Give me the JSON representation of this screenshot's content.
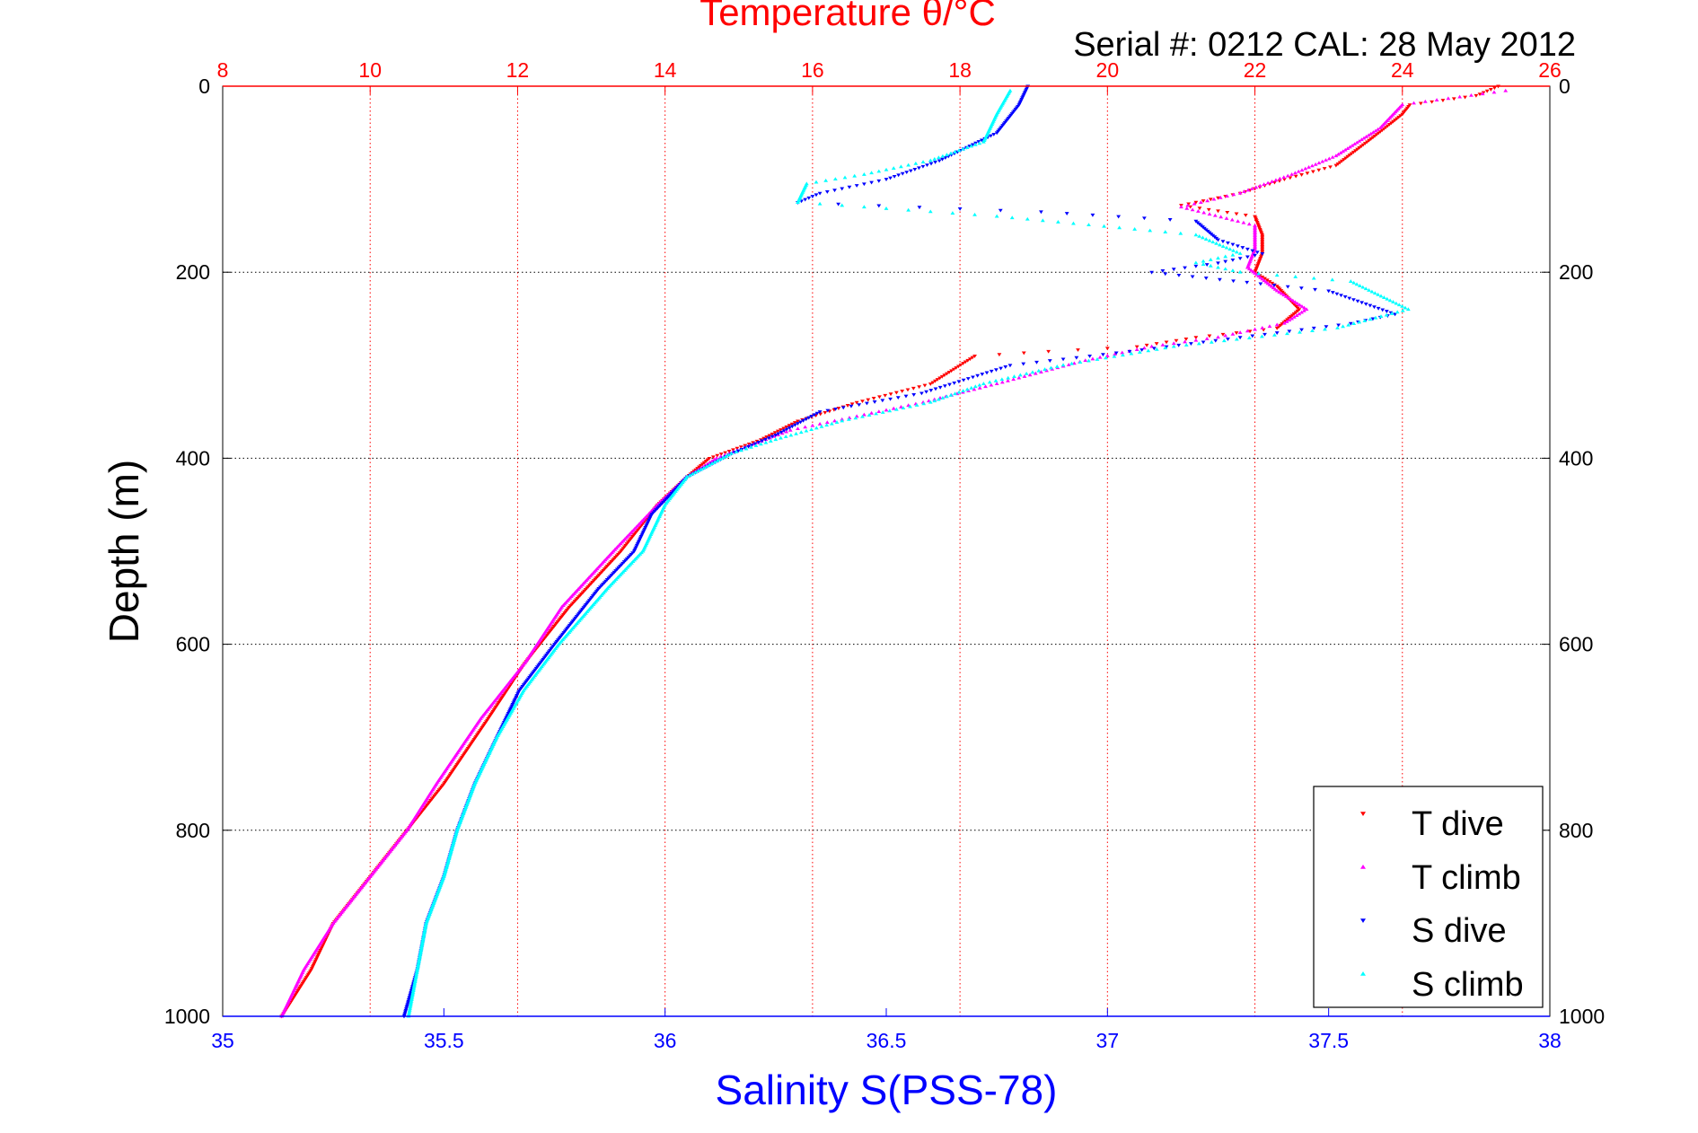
{
  "chart_data": {
    "type": "scatter",
    "title": "Temperature θ/°C",
    "subtitle": "Serial #: 0212  CAL: 28 May 2012",
    "top_axis": {
      "label": "Temperature θ/°C",
      "range": [
        8,
        26
      ],
      "ticks": [
        "8",
        "10",
        "12",
        "14",
        "16",
        "18",
        "20",
        "22",
        "24",
        "26"
      ],
      "color": "#ff0000"
    },
    "bottom_axis": {
      "label": "Salinity S(PSS-78)",
      "range": [
        35,
        38
      ],
      "ticks": [
        "35",
        "35.5",
        "36",
        "36.5",
        "37",
        "37.5",
        "38"
      ],
      "color": "#0000ff"
    },
    "y_axis": {
      "label": "Depth (m)",
      "range": [
        0,
        1000
      ],
      "reversed": true,
      "ticks": [
        "0",
        "200",
        "400",
        "600",
        "800",
        "1000"
      ]
    },
    "grid": true,
    "legend_position": "bottom-right",
    "series": [
      {
        "name": "T dive",
        "axis": "temperature",
        "color": "#ff0000",
        "marker": "down-triangle",
        "points": [
          [
            25.3,
            0
          ],
          [
            25.0,
            10
          ],
          [
            24.1,
            20
          ],
          [
            24.0,
            30
          ],
          [
            23.6,
            55
          ],
          [
            23.1,
            85
          ],
          [
            22.4,
            100
          ],
          [
            21.8,
            115
          ],
          [
            21.0,
            128
          ],
          [
            22.0,
            140
          ],
          [
            22.1,
            160
          ],
          [
            22.1,
            180
          ],
          [
            22.0,
            200
          ],
          [
            22.3,
            215
          ],
          [
            22.6,
            240
          ],
          [
            22.3,
            260
          ],
          [
            21.2,
            270
          ],
          [
            20.4,
            280
          ],
          [
            19.2,
            285
          ],
          [
            18.2,
            290
          ],
          [
            17.6,
            320
          ],
          [
            16.6,
            340
          ],
          [
            15.8,
            360
          ],
          [
            15.3,
            380
          ],
          [
            14.6,
            400
          ],
          [
            14.3,
            420
          ],
          [
            13.9,
            450
          ],
          [
            13.4,
            500
          ],
          [
            12.7,
            560
          ],
          [
            12.1,
            620
          ],
          [
            11.6,
            680
          ],
          [
            11.0,
            750
          ],
          [
            10.5,
            800
          ],
          [
            10.0,
            850
          ],
          [
            9.5,
            900
          ],
          [
            9.2,
            950
          ],
          [
            8.8,
            1000
          ]
        ]
      },
      {
        "name": "T climb",
        "axis": "temperature",
        "color": "#ff00ff",
        "marker": "up-triangle",
        "points": [
          [
            25.4,
            5
          ],
          [
            24.0,
            20
          ],
          [
            23.7,
            45
          ],
          [
            23.1,
            75
          ],
          [
            22.5,
            95
          ],
          [
            21.8,
            115
          ],
          [
            21.0,
            130
          ],
          [
            22.0,
            150
          ],
          [
            22.0,
            175
          ],
          [
            21.9,
            195
          ],
          [
            22.3,
            220
          ],
          [
            22.7,
            240
          ],
          [
            22.4,
            255
          ],
          [
            21.5,
            270
          ],
          [
            20.6,
            280
          ],
          [
            19.7,
            295
          ],
          [
            18.5,
            320
          ],
          [
            17.5,
            340
          ],
          [
            16.6,
            355
          ],
          [
            15.7,
            370
          ],
          [
            15.2,
            385
          ],
          [
            14.7,
            400
          ],
          [
            14.3,
            420
          ],
          [
            13.9,
            450
          ],
          [
            13.3,
            500
          ],
          [
            12.6,
            560
          ],
          [
            12.1,
            620
          ],
          [
            11.5,
            680
          ],
          [
            10.9,
            750
          ],
          [
            10.5,
            800
          ],
          [
            10.0,
            850
          ],
          [
            9.5,
            900
          ],
          [
            9.1,
            950
          ],
          [
            8.8,
            1000
          ]
        ]
      },
      {
        "name": "S dive",
        "axis": "salinity",
        "color": "#0000ff",
        "marker": "down-triangle",
        "points": [
          [
            36.82,
            0
          ],
          [
            36.8,
            20
          ],
          [
            36.75,
            50
          ],
          [
            36.62,
            80
          ],
          [
            36.5,
            100
          ],
          [
            36.35,
            115
          ],
          [
            36.3,
            125
          ],
          [
            36.85,
            135
          ],
          [
            37.2,
            145
          ],
          [
            37.25,
            165
          ],
          [
            37.35,
            180
          ],
          [
            37.25,
            190
          ],
          [
            37.1,
            200
          ],
          [
            37.5,
            220
          ],
          [
            37.65,
            245
          ],
          [
            37.55,
            255
          ],
          [
            37.3,
            270
          ],
          [
            37.05,
            285
          ],
          [
            36.78,
            300
          ],
          [
            36.58,
            330
          ],
          [
            36.35,
            350
          ],
          [
            36.25,
            375
          ],
          [
            36.15,
            395
          ],
          [
            36.05,
            420
          ],
          [
            35.97,
            460
          ],
          [
            35.93,
            500
          ],
          [
            35.85,
            540
          ],
          [
            35.75,
            600
          ],
          [
            35.67,
            650
          ],
          [
            35.62,
            700
          ],
          [
            35.57,
            750
          ],
          [
            35.53,
            800
          ],
          [
            35.5,
            850
          ],
          [
            35.46,
            900
          ],
          [
            35.44,
            950
          ],
          [
            35.41,
            1000
          ]
        ]
      },
      {
        "name": "S climb",
        "axis": "salinity",
        "color": "#00ffff",
        "marker": "up-triangle",
        "points": [
          [
            36.78,
            5
          ],
          [
            36.75,
            30
          ],
          [
            36.72,
            60
          ],
          [
            36.6,
            80
          ],
          [
            36.45,
            95
          ],
          [
            36.32,
            105
          ],
          [
            36.3,
            125
          ],
          [
            36.75,
            140
          ],
          [
            37.2,
            160
          ],
          [
            37.3,
            180
          ],
          [
            37.2,
            190
          ],
          [
            37.3,
            200
          ],
          [
            37.55,
            210
          ],
          [
            37.68,
            240
          ],
          [
            37.52,
            260
          ],
          [
            37.15,
            280
          ],
          [
            36.9,
            300
          ],
          [
            36.72,
            320
          ],
          [
            36.6,
            340
          ],
          [
            36.4,
            360
          ],
          [
            36.25,
            380
          ],
          [
            36.15,
            395
          ],
          [
            36.05,
            420
          ],
          [
            36.0,
            450
          ],
          [
            35.95,
            500
          ],
          [
            35.87,
            540
          ],
          [
            35.76,
            600
          ],
          [
            35.68,
            650
          ],
          [
            35.62,
            700
          ],
          [
            35.57,
            750
          ],
          [
            35.53,
            800
          ],
          [
            35.5,
            850
          ],
          [
            35.46,
            900
          ],
          [
            35.44,
            950
          ],
          [
            35.42,
            1000
          ]
        ]
      }
    ]
  }
}
